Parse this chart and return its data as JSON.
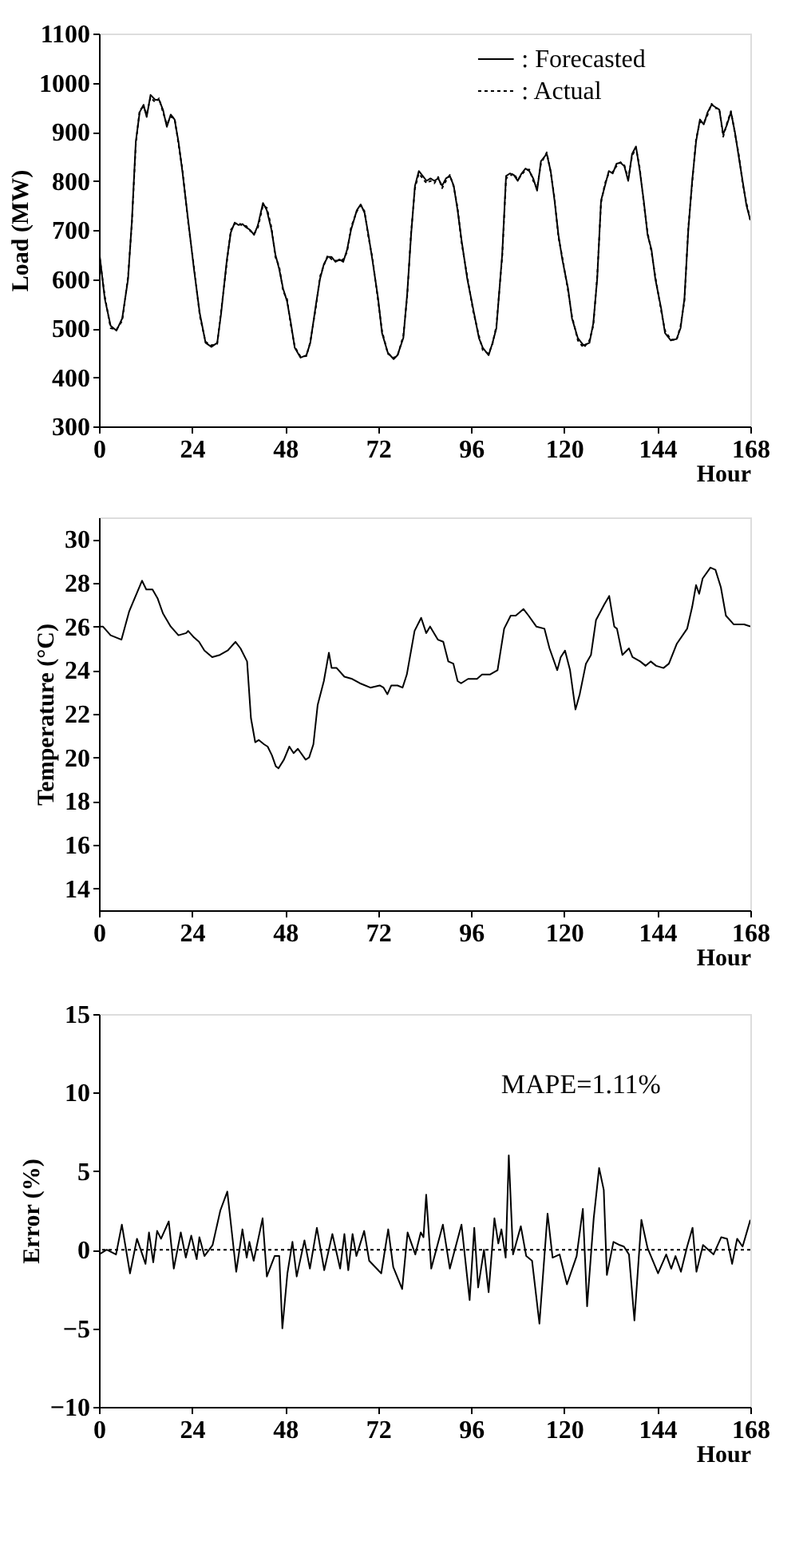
{
  "chart_data": [
    {
      "type": "line",
      "ylabel": "Load (MW)",
      "xlabel": "Hour",
      "xlim": [
        0,
        168
      ],
      "xticks": [
        0,
        24,
        48,
        72,
        96,
        120,
        144,
        168
      ],
      "ylim": [
        300,
        1100
      ],
      "yticks": [
        300,
        400,
        500,
        600,
        700,
        800,
        900,
        1000,
        1100
      ],
      "grid": false,
      "legend": "top right",
      "x": [
        0,
        1.5,
        3,
        4.5,
        6,
        7.5,
        8.5,
        9.5,
        10.5,
        11.5,
        12.3,
        13.3,
        14.5,
        15.5,
        16.5,
        17.5,
        18.5,
        19.5,
        20.5,
        21.5,
        23,
        24.5,
        26,
        27.5,
        29,
        30.5,
        31.5,
        33,
        34,
        35,
        36,
        37,
        38,
        39,
        40,
        41,
        42.3,
        43.3,
        44.5,
        45.5,
        46.5,
        47.5,
        48.5,
        49.5,
        50.5,
        52,
        53.5,
        54.5,
        56,
        57,
        58,
        59,
        60,
        61,
        62,
        63,
        64,
        65,
        66.5,
        67.5,
        68.5,
        69.5,
        70.5,
        72,
        73,
        74.5,
        76,
        77,
        78.5,
        79.5,
        80.5,
        81.5,
        82.5,
        83.5,
        84.5,
        85.5,
        86.5,
        87.5,
        88.5,
        89.5,
        90.5,
        91.5,
        92.5,
        93.5,
        95,
        96.5,
        98,
        99,
        100.5,
        101.5,
        102.5,
        104,
        105,
        106,
        107,
        108,
        109,
        110,
        111,
        112,
        113,
        114,
        115.5,
        116.5,
        117.5,
        118.5,
        119.5,
        121,
        122,
        123.5,
        125,
        126.5,
        127.5,
        128.5,
        129.5,
        130.5,
        131.5,
        132.5,
        133.5,
        134.5,
        135.5,
        136.5,
        137.5,
        138.5,
        139.5,
        140.5,
        141.5,
        142.5,
        143.5,
        145,
        146,
        147.5,
        149,
        150,
        151,
        152,
        153,
        154,
        155,
        156,
        157,
        158,
        159,
        160,
        161,
        162,
        163,
        164,
        165,
        166,
        167,
        168
      ],
      "series": [
        {
          "name": ": Forecasted",
          "color": "#000000",
          "line_style": "solid",
          "values": [
            660,
            560,
            505,
            495,
            520,
            600,
            720,
            880,
            940,
            955,
            930,
            975,
            965,
            965,
            945,
            910,
            935,
            925,
            880,
            820,
            720,
            620,
            530,
            470,
            462,
            470,
            530,
            640,
            695,
            715,
            710,
            712,
            705,
            700,
            690,
            710,
            755,
            740,
            700,
            650,
            620,
            580,
            555,
            510,
            460,
            440,
            445,
            470,
            550,
            600,
            630,
            645,
            645,
            635,
            640,
            635,
            660,
            700,
            740,
            752,
            735,
            690,
            640,
            560,
            490,
            450,
            437,
            445,
            480,
            570,
            690,
            790,
            820,
            810,
            800,
            805,
            800,
            805,
            790,
            805,
            810,
            790,
            740,
            680,
            600,
            540,
            480,
            460,
            445,
            470,
            500,
            650,
            810,
            815,
            812,
            800,
            815,
            825,
            820,
            805,
            780,
            840,
            855,
            820,
            760,
            690,
            640,
            580,
            520,
            480,
            465,
            470,
            510,
            600,
            760,
            790,
            820,
            815,
            835,
            837,
            830,
            800,
            855,
            870,
            820,
            760,
            690,
            660,
            600,
            540,
            490,
            475,
            478,
            500,
            560,
            700,
            800,
            880,
            925,
            915,
            940,
            955,
            950,
            945,
            895,
            915,
            940,
            900,
            850,
            800,
            750,
            720
          ]
        },
        {
          "name": ": Actual",
          "color": "#000000",
          "line_style": "dotted",
          "values": [
            655,
            565,
            500,
            497,
            515,
            605,
            715,
            875,
            945,
            950,
            935,
            970,
            960,
            968,
            940,
            915,
            930,
            928,
            875,
            825,
            715,
            625,
            525,
            472,
            465,
            468,
            535,
            635,
            700,
            712,
            715,
            708,
            708,
            698,
            692,
            705,
            750,
            745,
            705,
            645,
            625,
            575,
            560,
            505,
            462,
            442,
            443,
            472,
            545,
            605,
            628,
            648,
            640,
            638,
            637,
            640,
            655,
            705,
            738,
            750,
            738,
            685,
            645,
            555,
            495,
            448,
            440,
            443,
            485,
            565,
            695,
            785,
            815,
            805,
            795,
            800,
            795,
            808,
            785,
            800,
            812,
            788,
            745,
            675,
            605,
            535,
            485,
            455,
            448,
            468,
            505,
            645,
            805,
            810,
            815,
            802,
            812,
            822,
            823,
            800,
            785,
            835,
            858,
            818,
            765,
            685,
            645,
            575,
            525,
            475,
            460,
            475,
            505,
            605,
            755,
            795,
            815,
            818,
            830,
            838,
            832,
            805,
            850,
            868,
            825,
            755,
            695,
            655,
            605,
            535,
            495,
            477,
            476,
            505,
            555,
            705,
            795,
            885,
            920,
            918,
            935,
            957,
            948,
            947,
            890,
            918,
            942,
            898,
            855,
            795,
            755,
            720
          ]
        }
      ]
    },
    {
      "type": "line",
      "ylabel": "Temperature (°C)",
      "xlabel": "Hour",
      "xlim": [
        0,
        168
      ],
      "xticks": [
        0,
        24,
        48,
        72,
        96,
        120,
        144,
        168
      ],
      "ylim": [
        13,
        31
      ],
      "yticks": [
        14,
        16,
        18,
        20,
        22,
        24,
        26,
        28,
        30
      ],
      "grid": false,
      "x": [
        0,
        1,
        3,
        5.8,
        7.8,
        11.1,
        12.2,
        13.8,
        15.1,
        16.5,
        18.5,
        20.5,
        22.5,
        23,
        24.5,
        25.8,
        27.2,
        29.2,
        31.2,
        33.2,
        35.2,
        36.5,
        38.2,
        39.2,
        40.3,
        41.2,
        42.6,
        43.5,
        44.6,
        45.6,
        46.3,
        47.7,
        49.1,
        50.2,
        51.3,
        53.3,
        54.2,
        55.3,
        56.4,
        58,
        59.3,
        60,
        61.3,
        63.3,
        65.3,
        67.3,
        70,
        72.4,
        73.4,
        74.4,
        75.4,
        77,
        78.3,
        79.4,
        81.4,
        83.1,
        84.4,
        85.4,
        87.4,
        88.8,
        90.1,
        91.4,
        92.5,
        93.4,
        95.2,
        97.5,
        98.8,
        100.8,
        102.8,
        104.5,
        106.2,
        107.5,
        109.5,
        110.8,
        112.8,
        114.9,
        116.2,
        118.2,
        119.1,
        120.2,
        121.5,
        122.9,
        124,
        125.6,
        126.9,
        128.2,
        130.3,
        131.6,
        132.9,
        133.6,
        135,
        136.7,
        137.6,
        139.6,
        141,
        142.3,
        143.7,
        145.6,
        147,
        149,
        151.7,
        153,
        154,
        154.8,
        155.7,
        157.7,
        159,
        160.4,
        161.7,
        163.7,
        166.4,
        168
      ],
      "series": [
        {
          "color": "#000000",
          "values": [
            26.0,
            26.0,
            25.6,
            25.4,
            26.7,
            28.1,
            27.7,
            27.7,
            27.3,
            26.6,
            26.0,
            25.6,
            25.7,
            25.8,
            25.5,
            25.3,
            24.9,
            24.6,
            24.7,
            24.9,
            25.3,
            25.0,
            24.4,
            21.8,
            20.7,
            20.8,
            20.6,
            20.5,
            20.1,
            19.6,
            19.5,
            19.9,
            20.5,
            20.2,
            20.4,
            19.9,
            20.0,
            20.6,
            22.4,
            23.5,
            24.8,
            24.1,
            24.1,
            23.7,
            23.6,
            23.4,
            23.2,
            23.3,
            23.2,
            22.9,
            23.3,
            23.3,
            23.2,
            23.8,
            25.8,
            26.4,
            25.7,
            26.0,
            25.4,
            25.3,
            24.4,
            24.3,
            23.5,
            23.4,
            23.6,
            23.6,
            23.8,
            23.8,
            24.0,
            25.9,
            26.5,
            26.5,
            26.8,
            26.5,
            26.0,
            25.9,
            25.0,
            24.0,
            24.6,
            24.9,
            24.0,
            22.2,
            22.9,
            24.3,
            24.7,
            26.3,
            27.0,
            27.4,
            26.0,
            25.9,
            24.7,
            25.0,
            24.6,
            24.4,
            24.2,
            24.4,
            24.2,
            24.1,
            24.3,
            25.2,
            25.9,
            26.9,
            27.9,
            27.5,
            28.2,
            28.7,
            28.6,
            27.8,
            26.5,
            26.1,
            26.1,
            26.0
          ]
        }
      ]
    },
    {
      "type": "line",
      "ylabel": "Error (%)",
      "xlabel": "Hour",
      "xlim": [
        0,
        168
      ],
      "xticks": [
        0,
        24,
        48,
        72,
        96,
        120,
        144,
        168
      ],
      "ylim": [
        -10,
        15
      ],
      "yticks": [
        -10,
        -5,
        0,
        5,
        10,
        15
      ],
      "grid": false,
      "ref_lines": [
        {
          "axis": "y",
          "value": 0,
          "line_style": "dotted"
        }
      ],
      "annotations": [
        "MAPE=1.11%"
      ],
      "x": [
        0,
        2,
        4.4,
        5.9,
        8,
        9.8,
        12,
        12.9,
        14,
        15,
        16,
        18,
        19.3,
        21.1,
        22.4,
        23.8,
        25.2,
        25.9,
        27.2,
        29.3,
        31.3,
        33.1,
        35.4,
        37,
        38.1,
        38.8,
        39.9,
        42.2,
        43.3,
        45.3,
        46.5,
        47.3,
        48.6,
        49.9,
        51,
        53,
        54.4,
        56.2,
        58.1,
        60.2,
        62.2,
        63.3,
        64.3,
        65.4,
        66.4,
        68.4,
        69.7,
        72.8,
        74.6,
        75.9,
        78.2,
        79.6,
        81.6,
        83,
        83.7,
        84.4,
        85.7,
        88.7,
        90.5,
        93.5,
        95.6,
        96.8,
        97.8,
        99.3,
        100.5,
        102,
        103,
        103.8,
        104.9,
        105.7,
        106.8,
        108.8,
        110.2,
        111.7,
        113.6,
        115.7,
        117,
        118.8,
        120.7,
        123.2,
        124.8,
        125.9,
        127.6,
        129,
        130.2,
        131,
        132.7,
        134.3,
        135.4,
        136.7,
        138.1,
        139.9,
        141.5,
        144.2,
        146.3,
        147.6,
        148.7,
        150.1,
        151.7,
        153.1,
        154.1,
        155.8,
        158.5,
        160.5,
        162,
        163.3,
        164.6,
        166,
        168
      ],
      "series": [
        {
          "color": "#000000",
          "values": [
            -0.3,
            0,
            -0.3,
            1.6,
            -1.5,
            0.7,
            -0.9,
            1.1,
            -0.8,
            1.2,
            0.7,
            1.8,
            -1.2,
            1.1,
            -0.5,
            0.9,
            -0.6,
            0.8,
            -0.4,
            0.3,
            2.5,
            3.7,
            -1.4,
            1.3,
            -0.5,
            0.5,
            -0.7,
            2.0,
            -1.7,
            -0.4,
            -0.4,
            -5.0,
            -1.5,
            0.5,
            -1.7,
            0.6,
            -1.2,
            1.4,
            -1.3,
            1.0,
            -1.2,
            1.0,
            -1.3,
            1.0,
            -0.4,
            1.2,
            -0.7,
            -1.5,
            1.3,
            -1.1,
            -2.5,
            1.1,
            -0.3,
            1.1,
            0.8,
            3.5,
            -1.2,
            1.6,
            -1.2,
            1.6,
            -3.2,
            1.4,
            -2.4,
            0,
            -2.7,
            2.0,
            0.4,
            1.3,
            -0.5,
            6.0,
            -0.3,
            1.5,
            -0.4,
            -0.7,
            -4.7,
            2.3,
            -0.5,
            -0.3,
            -2.2,
            -0.4,
            2.6,
            -3.6,
            2.0,
            5.2,
            3.8,
            -1.6,
            0.5,
            0.3,
            0.2,
            -0.3,
            -4.5,
            1.9,
            0.1,
            -1.5,
            -0.3,
            -1.2,
            -0.4,
            -1.4,
            0.2,
            1.4,
            -1.4,
            0.3,
            -0.3,
            0.8,
            0.7,
            -0.9,
            0.7,
            0.2,
            1.9
          ]
        }
      ]
    }
  ]
}
